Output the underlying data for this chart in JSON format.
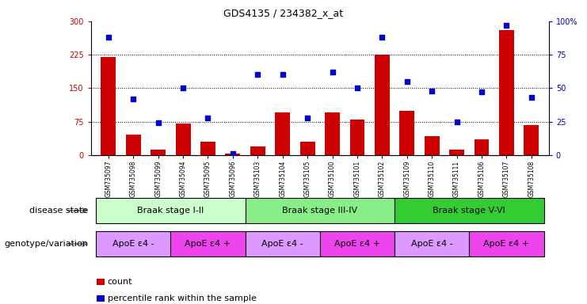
{
  "title": "GDS4135 / 234382_x_at",
  "samples": [
    "GSM735097",
    "GSM735098",
    "GSM735099",
    "GSM735094",
    "GSM735095",
    "GSM735096",
    "GSM735103",
    "GSM735104",
    "GSM735105",
    "GSM735100",
    "GSM735101",
    "GSM735102",
    "GSM735109",
    "GSM735110",
    "GSM735111",
    "GSM735106",
    "GSM735107",
    "GSM735108"
  ],
  "counts": [
    220,
    45,
    12,
    70,
    30,
    3,
    20,
    95,
    30,
    95,
    80,
    225,
    100,
    42,
    12,
    35,
    280,
    68
  ],
  "percentile_ranks": [
    88,
    42,
    24,
    50,
    28,
    1,
    60,
    60,
    28,
    62,
    50,
    88,
    55,
    48,
    25,
    47,
    97,
    43
  ],
  "bar_color": "#cc0000",
  "dot_color": "#0000cc",
  "ylim_left": [
    0,
    300
  ],
  "ylim_right": [
    0,
    100
  ],
  "yticks_left": [
    0,
    75,
    150,
    225,
    300
  ],
  "yticks_right": [
    0,
    25,
    50,
    75,
    100
  ],
  "disease_states": [
    {
      "label": "Braak stage I-II",
      "start": 0,
      "end": 6,
      "color": "#ccffcc"
    },
    {
      "label": "Braak stage III-IV",
      "start": 6,
      "end": 12,
      "color": "#88ee88"
    },
    {
      "label": "Braak stage V-VI",
      "start": 12,
      "end": 18,
      "color": "#33cc33"
    }
  ],
  "genotype_groups": [
    {
      "label": "ApoE ε4 -",
      "start": 0,
      "end": 3,
      "color": "#dd99ff"
    },
    {
      "label": "ApoE ε4 +",
      "start": 3,
      "end": 6,
      "color": "#ee44ee"
    },
    {
      "label": "ApoE ε4 -",
      "start": 6,
      "end": 9,
      "color": "#dd99ff"
    },
    {
      "label": "ApoE ε4 +",
      "start": 9,
      "end": 12,
      "color": "#ee44ee"
    },
    {
      "label": "ApoE ε4 -",
      "start": 12,
      "end": 15,
      "color": "#dd99ff"
    },
    {
      "label": "ApoE ε4 +",
      "start": 15,
      "end": 18,
      "color": "#ee44ee"
    }
  ],
  "row_labels": [
    "disease state",
    "genotype/variation"
  ],
  "legend_items": [
    {
      "label": "count",
      "color": "#cc0000"
    },
    {
      "label": "percentile rank within the sample",
      "color": "#0000cc"
    }
  ],
  "hline_values": [
    75,
    150,
    225
  ]
}
